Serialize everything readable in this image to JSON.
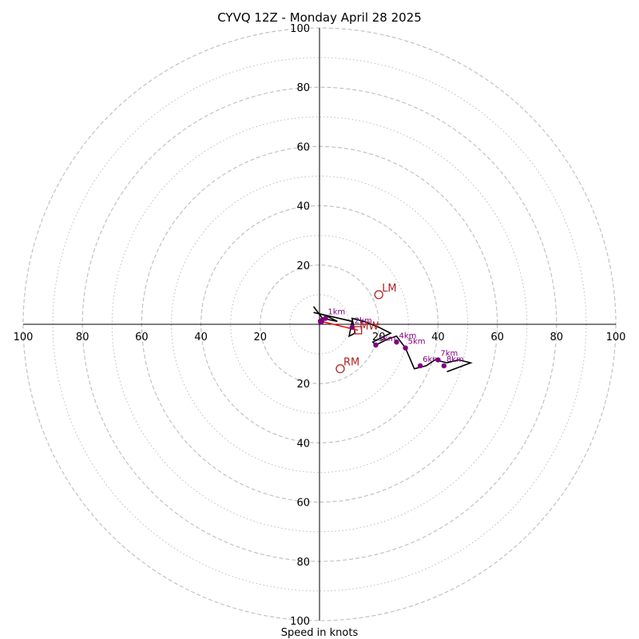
{
  "chart_data": {
    "type": "scatter",
    "title": "CYVQ 12Z - Monday April 28 2025",
    "xlabel": "Speed in knots",
    "ring_max": 100,
    "ring_major": [
      20,
      40,
      60,
      80,
      100
    ],
    "ring_minor": [
      10,
      30,
      50,
      70,
      90
    ],
    "tick_labels": [
      "20",
      "40",
      "60",
      "80",
      "100"
    ],
    "trace": [
      [
        -2,
        6
      ],
      [
        1,
        2
      ],
      [
        6,
        1
      ],
      [
        2,
        3
      ],
      [
        -2,
        4
      ],
      [
        11,
        1
      ],
      [
        10,
        -4
      ],
      [
        12,
        -3
      ],
      [
        11,
        2
      ],
      [
        15,
        1
      ],
      [
        20,
        -1
      ],
      [
        24,
        -3
      ],
      [
        18,
        -6
      ],
      [
        19,
        -7
      ],
      [
        23,
        -5
      ],
      [
        26,
        -4
      ],
      [
        29,
        -8
      ],
      [
        32,
        -15
      ],
      [
        36,
        -14
      ],
      [
        39,
        -12
      ],
      [
        43,
        -13
      ],
      [
        47,
        -12
      ],
      [
        51,
        -13
      ],
      [
        43,
        -16
      ]
    ],
    "height_points": [
      {
        "label": "1km",
        "x": 2,
        "y": 2
      },
      {
        "label": "2km",
        "x": 11,
        "y": -1
      },
      {
        "label": "3km",
        "x": 19,
        "y": -7
      },
      {
        "label": "4km",
        "x": 26,
        "y": -6
      },
      {
        "label": "5km",
        "x": 29,
        "y": -8
      },
      {
        "label": "6km",
        "x": 34,
        "y": -14
      },
      {
        "label": "7km",
        "x": 40,
        "y": -12
      },
      {
        "label": "8km",
        "x": 42,
        "y": -14
      }
    ],
    "surface_point": {
      "x": 0.5,
      "y": 1
    },
    "mean_wind": {
      "label": "MW",
      "x": 13,
      "y": -2
    },
    "left_mover": {
      "label": "LM",
      "x": 20,
      "y": 10
    },
    "right_mover": {
      "label": "RM",
      "x": 7,
      "y": -15
    },
    "colors": {
      "trace": "#000000",
      "height_points": "#800080",
      "storm_markers": "#b22222",
      "shear_vector": "#ff0000",
      "grid": "#bdbdbd"
    }
  }
}
